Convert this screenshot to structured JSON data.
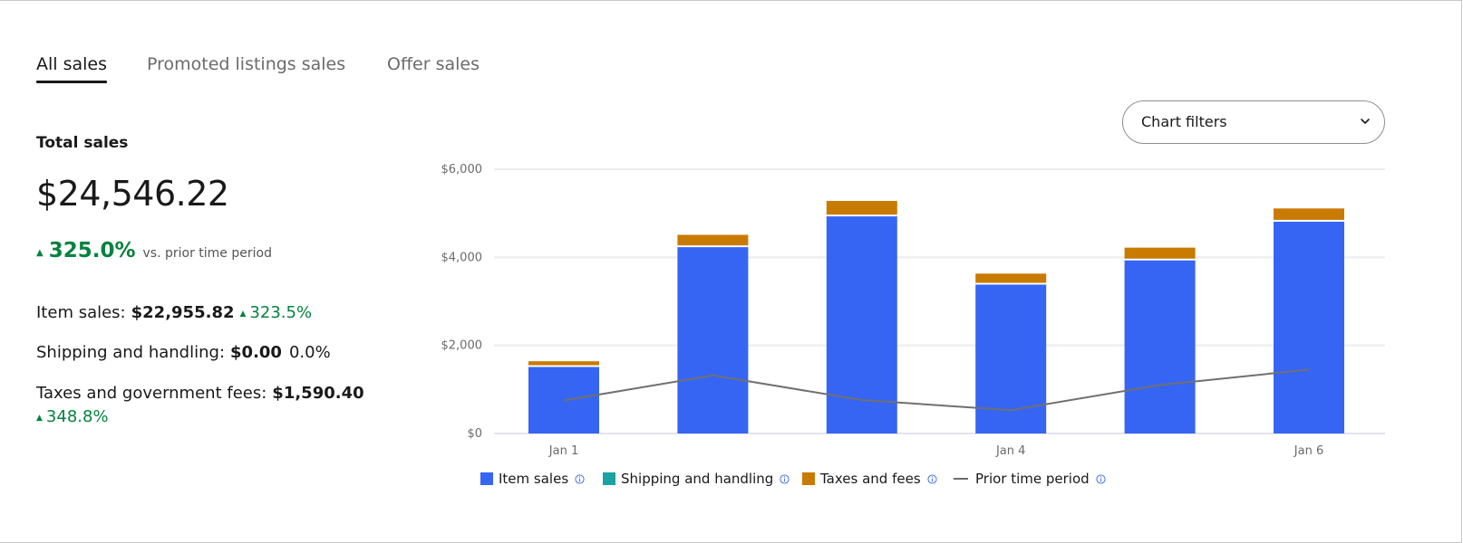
{
  "tabs": [
    {
      "label": "All sales",
      "active": true
    },
    {
      "label": "Promoted listings sales",
      "active": false
    },
    {
      "label": "Offer sales",
      "active": false
    }
  ],
  "summary": {
    "total_label": "Total sales",
    "total_value": "$24,546.22",
    "total_change": "325.0%",
    "vs_text": "vs. prior time period",
    "item_sales": {
      "label": "Item sales:",
      "value": "$22,955.82",
      "change": "323.5%"
    },
    "shipping": {
      "label": "Shipping and handling:",
      "value": "$0.00",
      "change": "0.0%"
    },
    "taxes": {
      "label": "Taxes and government fees:",
      "value": "$1,590.40",
      "change": "348.8%"
    }
  },
  "chart_filters": {
    "label": "Chart filters"
  },
  "colors": {
    "item_sales": "#3665f3",
    "shipping": "#1aa3a3",
    "taxes": "#c97a00",
    "prior": "#707070",
    "positive": "#05823f"
  },
  "chart_data": {
    "type": "bar",
    "stacked": true,
    "categories": [
      "Jan 1",
      "Jan 2",
      "Jan 3",
      "Jan 4",
      "Jan 5",
      "Jan 6"
    ],
    "x_tick_labels": [
      "Jan 1",
      "",
      "",
      "Jan 4",
      "",
      "Jan 6"
    ],
    "series": [
      {
        "name": "Item sales",
        "values": [
          1530,
          4250,
          4950,
          3400,
          3950,
          4830
        ]
      },
      {
        "name": "Shipping and handling",
        "values": [
          0,
          0,
          0,
          0,
          0,
          0
        ]
      },
      {
        "name": "Taxes and fees",
        "values": [
          110,
          260,
          330,
          230,
          270,
          280
        ]
      },
      {
        "name": "Prior time period",
        "type": "line",
        "values": [
          750,
          1320,
          760,
          530,
          1100,
          1450
        ]
      }
    ],
    "ylim": [
      0,
      6000
    ],
    "y_ticks": [
      {
        "value": 0,
        "label": "$0"
      },
      {
        "value": 2000,
        "label": "$2,000"
      },
      {
        "value": 4000,
        "label": "$4,000"
      },
      {
        "value": 6000,
        "label": "$6,000"
      }
    ],
    "grid": true,
    "legend_position": "bottom"
  }
}
